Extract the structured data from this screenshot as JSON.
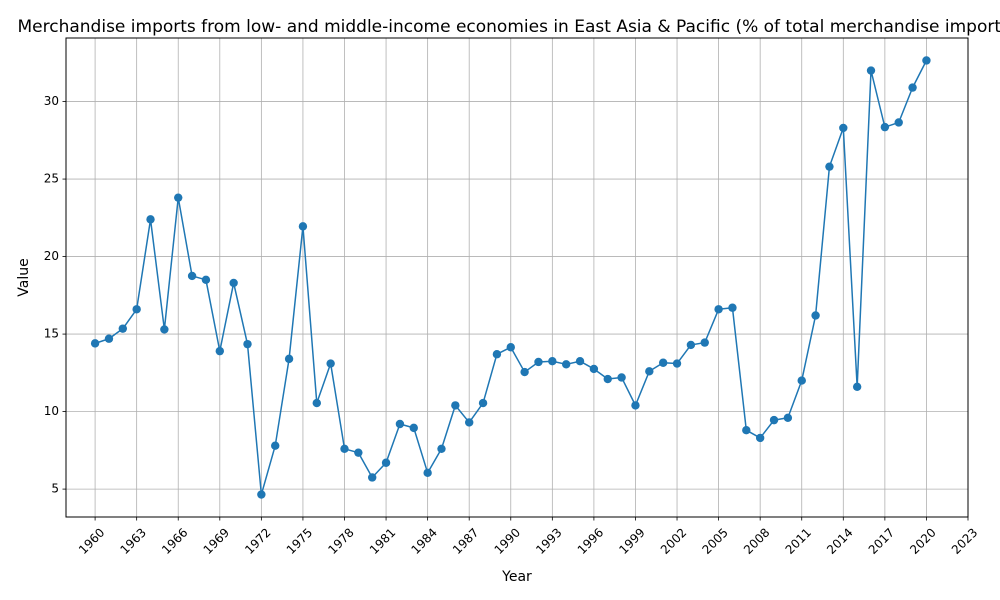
{
  "chart_data": {
    "type": "line",
    "title": "Merchandise imports from low- and middle-income economies in East Asia & Pacific (% of total merchandise imports)",
    "xlabel": "Year",
    "ylabel": "Value",
    "xlim": [
      1957.9,
      2023
    ],
    "ylim": [
      3.2,
      34.1
    ],
    "x_ticks": [
      1960,
      1963,
      1966,
      1969,
      1972,
      1975,
      1978,
      1981,
      1984,
      1987,
      1990,
      1993,
      1996,
      1999,
      2002,
      2005,
      2008,
      2011,
      2014,
      2017,
      2020,
      2023
    ],
    "y_ticks": [
      5,
      10,
      15,
      20,
      25,
      30
    ],
    "grid": true,
    "legend": "none",
    "color": "#1f77b4",
    "series": [
      {
        "x": [
          1960,
          1961,
          1962,
          1963,
          1964,
          1965,
          1966,
          1967,
          1968,
          1969,
          1970,
          1971,
          1972,
          1973,
          1974,
          1975,
          1976,
          1977,
          1978,
          1979,
          1980,
          1981,
          1982,
          1983,
          1984,
          1985,
          1986,
          1987,
          1988,
          1989,
          1990,
          1991,
          1992,
          1993,
          1994,
          1995,
          1996,
          1997,
          1998,
          1999,
          2000,
          2001,
          2002,
          2003,
          2004,
          2005,
          2006,
          2007,
          2008,
          2009,
          2010,
          2011,
          2012,
          2013,
          2014,
          2015,
          2016,
          2017,
          2018,
          2019,
          2020
        ],
        "values": [
          14.4,
          14.7,
          15.35,
          16.6,
          22.4,
          15.3,
          23.8,
          18.75,
          18.5,
          13.9,
          18.3,
          14.35,
          4.65,
          7.8,
          13.4,
          21.95,
          10.55,
          13.1,
          7.6,
          7.35,
          5.75,
          6.7,
          9.2,
          8.95,
          6.05,
          7.6,
          10.4,
          9.3,
          10.55,
          13.7,
          14.15,
          12.55,
          13.2,
          13.25,
          13.05,
          13.25,
          12.75,
          12.1,
          12.2,
          10.4,
          12.6,
          13.15,
          13.1,
          14.3,
          14.45,
          16.6,
          16.7,
          8.8,
          8.3,
          9.45,
          9.6,
          12.0,
          16.2,
          25.8,
          28.3,
          11.6,
          32.0,
          28.35,
          28.65,
          30.9,
          32.65
        ]
      }
    ]
  }
}
